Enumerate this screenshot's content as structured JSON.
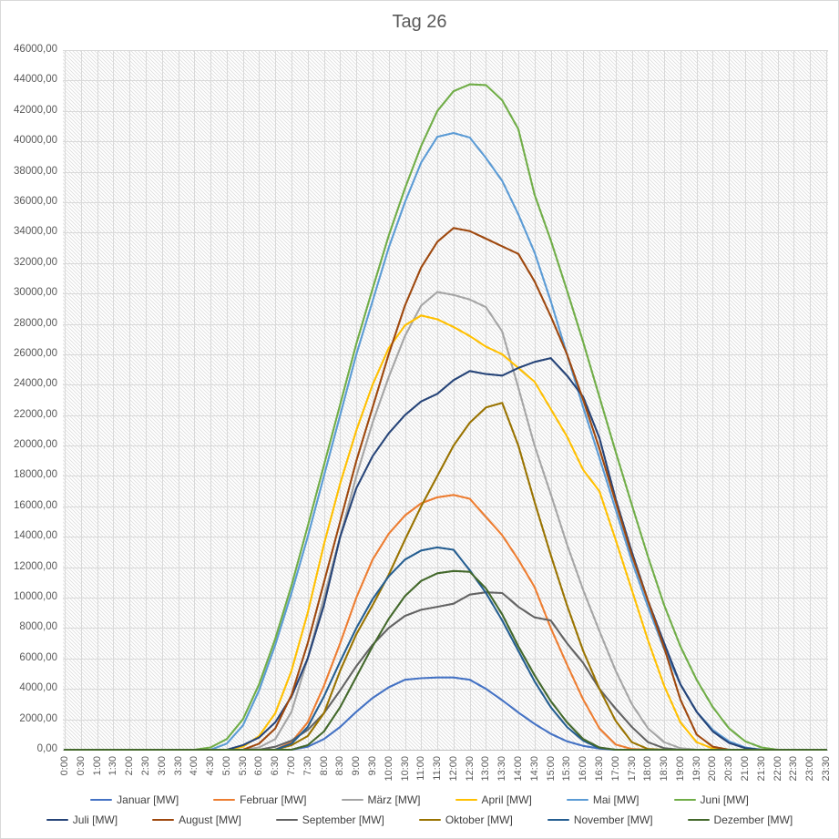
{
  "title": "Tag 26",
  "chart_data": {
    "type": "line",
    "title": "Tag 26",
    "xlabel": "",
    "ylabel": "",
    "ylim": [
      0,
      46000
    ],
    "y_tick_step": 2000,
    "grid": true,
    "legend_position": "bottom",
    "plot_background": "diagonal-hatch-pattern",
    "colors": {
      "grid": "#d9d9d9",
      "axis": "#bfbfbf",
      "hatch": "#dcdcdc",
      "text": "#595959",
      "title": "#595959",
      "background": "#ffffff"
    },
    "y_tick_labels": [
      "0,00",
      "2000,00",
      "4000,00",
      "6000,00",
      "8000,00",
      "10000,00",
      "12000,00",
      "14000,00",
      "16000,00",
      "18000,00",
      "20000,00",
      "22000,00",
      "24000,00",
      "26000,00",
      "28000,00",
      "30000,00",
      "32000,00",
      "34000,00",
      "36000,00",
      "38000,00",
      "40000,00",
      "42000,00",
      "44000,00",
      "46000,00"
    ],
    "x": [
      "0:00",
      "0:30",
      "1:00",
      "1:30",
      "2:00",
      "2:30",
      "3:00",
      "3:30",
      "4:00",
      "4:30",
      "5:00",
      "5:30",
      "6:00",
      "6:30",
      "7:00",
      "7:30",
      "8:00",
      "8:30",
      "9:00",
      "9:30",
      "10:00",
      "10:30",
      "11:00",
      "11:30",
      "12:00",
      "12:30",
      "13:00",
      "13:30",
      "14:00",
      "14:30",
      "15:00",
      "15:30",
      "16:00",
      "16:30",
      "17:00",
      "17:30",
      "18:00",
      "18:30",
      "19:00",
      "19:30",
      "20:00",
      "20:30",
      "21:00",
      "21:30",
      "22:00",
      "22:30",
      "23:00",
      "23:30"
    ],
    "series": [
      {
        "name": "januar",
        "label": "Januar [MW]",
        "color": "#4472C4",
        "values": [
          0,
          0,
          0,
          0,
          0,
          0,
          0,
          0,
          0,
          0,
          0,
          0,
          0,
          0,
          0,
          200,
          700,
          1500,
          2500,
          3400,
          4100,
          4600,
          4700,
          4750,
          4750,
          4600,
          4000,
          3250,
          2450,
          1700,
          1050,
          550,
          250,
          80,
          0,
          0,
          0,
          0,
          0,
          0,
          0,
          0,
          0,
          0,
          0,
          0,
          0,
          0
        ]
      },
      {
        "name": "februar",
        "label": "Februar [MW]",
        "color": "#ED7D31",
        "values": [
          0,
          0,
          0,
          0,
          0,
          0,
          0,
          0,
          0,
          0,
          0,
          0,
          0,
          0,
          500,
          1800,
          4200,
          7000,
          10000,
          12500,
          14200,
          15400,
          16200,
          16600,
          16750,
          16500,
          15300,
          14100,
          12500,
          10700,
          8000,
          5600,
          3300,
          1400,
          350,
          50,
          0,
          0,
          0,
          0,
          0,
          0,
          0,
          0,
          0,
          0,
          0,
          0
        ]
      },
      {
        "name": "maerz",
        "label": "März [MW]",
        "color": "#A5A5A5",
        "values": [
          0,
          0,
          0,
          0,
          0,
          0,
          0,
          0,
          0,
          0,
          0,
          0,
          150,
          700,
          2500,
          6000,
          10000,
          14000,
          18000,
          21500,
          24500,
          27200,
          29200,
          30100,
          29900,
          29600,
          29100,
          27500,
          23800,
          20000,
          16800,
          13500,
          10500,
          7800,
          5200,
          3000,
          1400,
          500,
          100,
          0,
          0,
          0,
          0,
          0,
          0,
          0,
          0,
          0
        ]
      },
      {
        "name": "april",
        "label": "April [MW]",
        "color": "#FFC000",
        "values": [
          0,
          0,
          0,
          0,
          0,
          0,
          0,
          0,
          0,
          0,
          0,
          200,
          900,
          2400,
          5200,
          9000,
          13500,
          17500,
          21000,
          24000,
          26400,
          27900,
          28550,
          28300,
          27800,
          27200,
          26500,
          26000,
          25100,
          24200,
          22400,
          20600,
          18400,
          17000,
          13800,
          10500,
          7200,
          4200,
          1800,
          500,
          80,
          0,
          0,
          0,
          0,
          0,
          0,
          0
        ]
      },
      {
        "name": "mai",
        "label": "Mai [MW]",
        "color": "#5B9BD5",
        "values": [
          0,
          0,
          0,
          0,
          0,
          0,
          0,
          0,
          0,
          0,
          400,
          1600,
          3900,
          6900,
          10300,
          14000,
          18000,
          22000,
          26000,
          29500,
          33000,
          36000,
          38600,
          40300,
          40550,
          40250,
          38900,
          37400,
          35200,
          32700,
          29500,
          26000,
          22500,
          19200,
          15800,
          12400,
          9400,
          6600,
          4300,
          2500,
          1300,
          550,
          150,
          0,
          0,
          0,
          0,
          0
        ]
      },
      {
        "name": "juni",
        "label": "Juni [MW]",
        "color": "#70AD47",
        "values": [
          0,
          0,
          0,
          0,
          0,
          0,
          0,
          0,
          0,
          150,
          700,
          2000,
          4300,
          7300,
          10800,
          14700,
          18700,
          22700,
          26700,
          30300,
          33800,
          36900,
          39700,
          42000,
          43300,
          43750,
          43700,
          42700,
          40800,
          36500,
          33500,
          30200,
          26800,
          23200,
          19600,
          16100,
          12700,
          9500,
          6800,
          4600,
          2800,
          1400,
          550,
          150,
          0,
          0,
          0,
          0
        ]
      },
      {
        "name": "juli",
        "label": "Juli [MW]",
        "color": "#264478",
        "values": [
          0,
          0,
          0,
          0,
          0,
          0,
          0,
          0,
          0,
          0,
          0,
          300,
          800,
          1800,
          3500,
          6000,
          9500,
          14000,
          17200,
          19300,
          20800,
          22000,
          22900,
          23400,
          24300,
          24900,
          24700,
          24600,
          25100,
          25500,
          25750,
          24600,
          23200,
          20500,
          16500,
          13000,
          9800,
          7000,
          4300,
          2500,
          1200,
          450,
          100,
          0,
          0,
          0,
          0,
          0
        ]
      },
      {
        "name": "august",
        "label": "August [MW]",
        "color": "#9E480E",
        "values": [
          0,
          0,
          0,
          0,
          0,
          0,
          0,
          0,
          0,
          0,
          0,
          0,
          400,
          1400,
          3600,
          7000,
          11000,
          15000,
          19000,
          22500,
          26000,
          29200,
          31700,
          33400,
          34300,
          34100,
          33600,
          33100,
          32600,
          30800,
          28500,
          26000,
          23000,
          19800,
          16300,
          12800,
          9800,
          6700,
          3300,
          1000,
          200,
          0,
          0,
          0,
          0,
          0,
          0,
          0
        ]
      },
      {
        "name": "september",
        "label": "September [MW]",
        "color": "#636363",
        "values": [
          0,
          0,
          0,
          0,
          0,
          0,
          0,
          0,
          0,
          0,
          0,
          0,
          0,
          200,
          600,
          1300,
          2400,
          3900,
          5500,
          6900,
          8000,
          8800,
          9200,
          9400,
          9600,
          10200,
          10350,
          10300,
          9400,
          8700,
          8500,
          7000,
          5700,
          4000,
          2700,
          1500,
          500,
          100,
          0,
          0,
          0,
          0,
          0,
          0,
          0,
          0,
          0,
          0
        ]
      },
      {
        "name": "oktober",
        "label": "Oktober [MW]",
        "color": "#997300",
        "values": [
          0,
          0,
          0,
          0,
          0,
          0,
          0,
          0,
          0,
          0,
          0,
          0,
          0,
          0,
          300,
          900,
          2400,
          5200,
          7600,
          9500,
          11500,
          13800,
          16000,
          18000,
          20000,
          21500,
          22500,
          22800,
          20000,
          16300,
          12800,
          9500,
          6500,
          4000,
          1900,
          500,
          50,
          0,
          0,
          0,
          0,
          0,
          0,
          0,
          0,
          0,
          0,
          0
        ]
      },
      {
        "name": "november",
        "label": "November [MW]",
        "color": "#255E91",
        "values": [
          0,
          0,
          0,
          0,
          0,
          0,
          0,
          0,
          0,
          0,
          0,
          0,
          0,
          0,
          400,
          1500,
          3500,
          5800,
          8000,
          9900,
          11400,
          12500,
          13100,
          13300,
          13150,
          11800,
          10300,
          8500,
          6500,
          4500,
          2800,
          1500,
          600,
          100,
          0,
          0,
          0,
          0,
          0,
          0,
          0,
          0,
          0,
          0,
          0,
          0,
          0,
          0
        ]
      },
      {
        "name": "dezember",
        "label": "Dezember [MW]",
        "color": "#43682B",
        "values": [
          0,
          0,
          0,
          0,
          0,
          0,
          0,
          0,
          0,
          0,
          0,
          0,
          0,
          0,
          0,
          300,
          1200,
          2800,
          4800,
          6800,
          8600,
          10100,
          11100,
          11600,
          11750,
          11700,
          10600,
          8900,
          6800,
          4900,
          3200,
          1800,
          700,
          150,
          0,
          0,
          0,
          0,
          0,
          0,
          0,
          0,
          0,
          0,
          0,
          0,
          0,
          0
        ]
      }
    ]
  }
}
